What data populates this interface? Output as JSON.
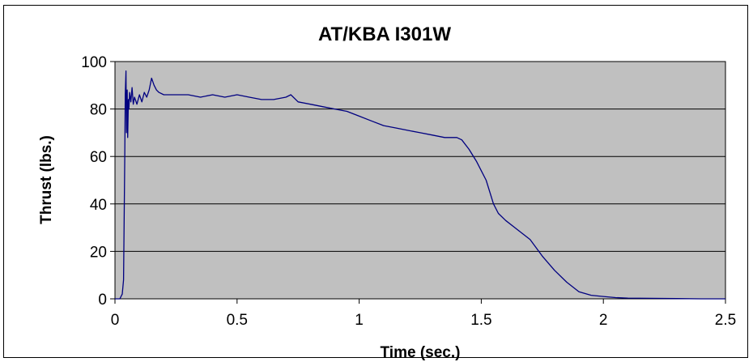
{
  "chart_data": {
    "type": "line",
    "title": "AT/KBA I301W",
    "xlabel": "Time (sec.)",
    "ylabel": "Thrust (lbs.)",
    "xlim": [
      0,
      2.5
    ],
    "ylim": [
      0,
      100
    ],
    "x_ticks": [
      "0",
      "0.5",
      "1",
      "1.5",
      "2",
      "2.5"
    ],
    "y_ticks": [
      "0",
      "20",
      "40",
      "60",
      "80",
      "100"
    ],
    "grid": "horizontal",
    "legend": "none",
    "colors": {
      "plot_area": "#c0c0c0",
      "series": "#000080",
      "grid": "#000000"
    },
    "series": [
      {
        "x": [
          0.0,
          0.02,
          0.03,
          0.035,
          0.04,
          0.042,
          0.045,
          0.047,
          0.05,
          0.052,
          0.055,
          0.057,
          0.06,
          0.065,
          0.07,
          0.075,
          0.08,
          0.09,
          0.1,
          0.11,
          0.12,
          0.13,
          0.14,
          0.15,
          0.16,
          0.17,
          0.18,
          0.2,
          0.25,
          0.3,
          0.35,
          0.4,
          0.45,
          0.5,
          0.55,
          0.6,
          0.65,
          0.7,
          0.72,
          0.75,
          0.8,
          0.85,
          0.9,
          0.95,
          1.0,
          1.05,
          1.1,
          1.15,
          1.2,
          1.25,
          1.3,
          1.35,
          1.4,
          1.42,
          1.45,
          1.48,
          1.5,
          1.52,
          1.55,
          1.57,
          1.6,
          1.65,
          1.7,
          1.75,
          1.8,
          1.85,
          1.9,
          1.95,
          2.0,
          2.05,
          2.1,
          2.2,
          2.3,
          2.4,
          2.5
        ],
        "y": [
          0,
          0,
          2,
          8,
          60,
          86,
          96,
          70,
          88,
          68,
          84,
          80,
          87,
          83,
          89,
          82,
          85,
          82,
          86,
          83,
          87,
          85,
          88,
          93,
          90,
          88,
          87,
          86,
          86,
          86,
          85,
          86,
          85,
          86,
          85,
          84,
          84,
          85,
          86,
          83,
          82,
          81,
          80,
          79,
          77,
          75,
          73,
          72,
          71,
          70,
          69,
          68,
          68,
          67,
          63,
          58,
          54,
          50,
          40,
          36,
          33,
          29,
          25,
          18,
          12,
          7,
          3,
          1.5,
          1,
          0.5,
          0.3,
          0.2,
          0.1,
          0,
          0
        ]
      }
    ]
  }
}
